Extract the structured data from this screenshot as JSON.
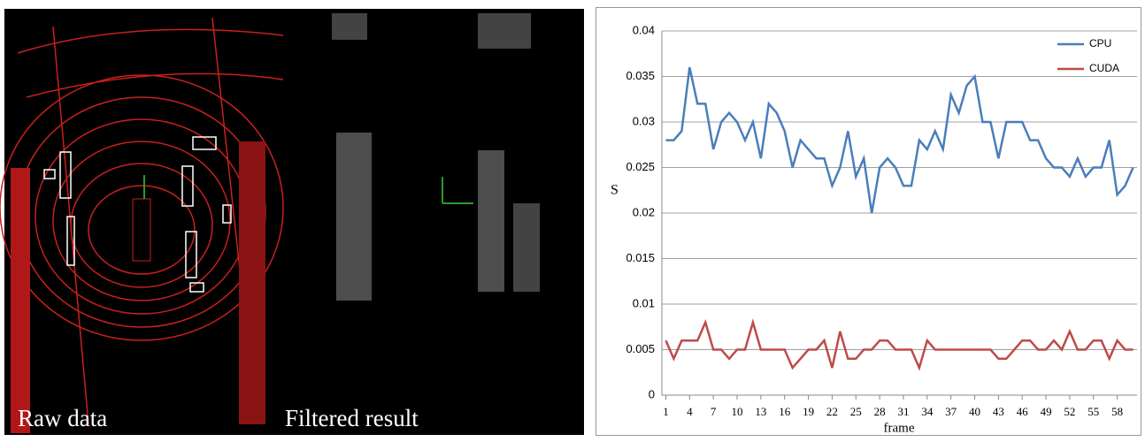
{
  "image": {
    "captions": [
      "Raw data",
      "Filtered result"
    ]
  },
  "chart_data": {
    "type": "line",
    "x": [
      1,
      2,
      3,
      4,
      5,
      6,
      7,
      8,
      9,
      10,
      11,
      12,
      13,
      14,
      15,
      16,
      17,
      18,
      19,
      20,
      21,
      22,
      23,
      24,
      25,
      26,
      27,
      28,
      29,
      30,
      31,
      32,
      33,
      34,
      35,
      36,
      37,
      38,
      39,
      40,
      41,
      42,
      43,
      44,
      45,
      46,
      47,
      48,
      49,
      50,
      51,
      52,
      53,
      54,
      55,
      56,
      57,
      58,
      59,
      60
    ],
    "xlim": [
      0.5,
      60.5
    ],
    "xticks": [
      1,
      4,
      7,
      10,
      13,
      16,
      19,
      22,
      25,
      28,
      31,
      34,
      37,
      40,
      43,
      46,
      49,
      52,
      55,
      58
    ],
    "ylim": [
      0,
      0.04
    ],
    "yticks": [
      0,
      0.005,
      0.01,
      0.015,
      0.02,
      0.025,
      0.03,
      0.035,
      0.04
    ],
    "x_label": "frame",
    "y_label": "S",
    "grid": true,
    "legend": "top-right",
    "series": [
      {
        "name": "CPU",
        "color": "#4a7ebb",
        "values": [
          0.028,
          0.028,
          0.029,
          0.036,
          0.032,
          0.032,
          0.027,
          0.03,
          0.031,
          0.03,
          0.028,
          0.03,
          0.026,
          0.032,
          0.031,
          0.029,
          0.025,
          0.028,
          0.027,
          0.026,
          0.026,
          0.023,
          0.025,
          0.029,
          0.024,
          0.026,
          0.02,
          0.025,
          0.026,
          0.025,
          0.023,
          0.023,
          0.028,
          0.027,
          0.029,
          0.027,
          0.033,
          0.031,
          0.034,
          0.035,
          0.03,
          0.03,
          0.026,
          0.03,
          0.03,
          0.03,
          0.028,
          0.028,
          0.026,
          0.025,
          0.025,
          0.024,
          0.026,
          0.024,
          0.025,
          0.025,
          0.028,
          0.022,
          0.023,
          0.025
        ]
      },
      {
        "name": "CUDA",
        "color": "#be4b48",
        "values": [
          0.006,
          0.004,
          0.006,
          0.006,
          0.006,
          0.008,
          0.005,
          0.005,
          0.004,
          0.005,
          0.005,
          0.008,
          0.005,
          0.005,
          0.005,
          0.005,
          0.003,
          0.004,
          0.005,
          0.005,
          0.006,
          0.003,
          0.007,
          0.004,
          0.004,
          0.005,
          0.005,
          0.006,
          0.006,
          0.005,
          0.005,
          0.005,
          0.003,
          0.006,
          0.005,
          0.005,
          0.005,
          0.005,
          0.005,
          0.005,
          0.005,
          0.005,
          0.004,
          0.004,
          0.005,
          0.006,
          0.006,
          0.005,
          0.005,
          0.006,
          0.005,
          0.007,
          0.005,
          0.005,
          0.006,
          0.006,
          0.004,
          0.006,
          0.005,
          0.005
        ]
      }
    ]
  }
}
